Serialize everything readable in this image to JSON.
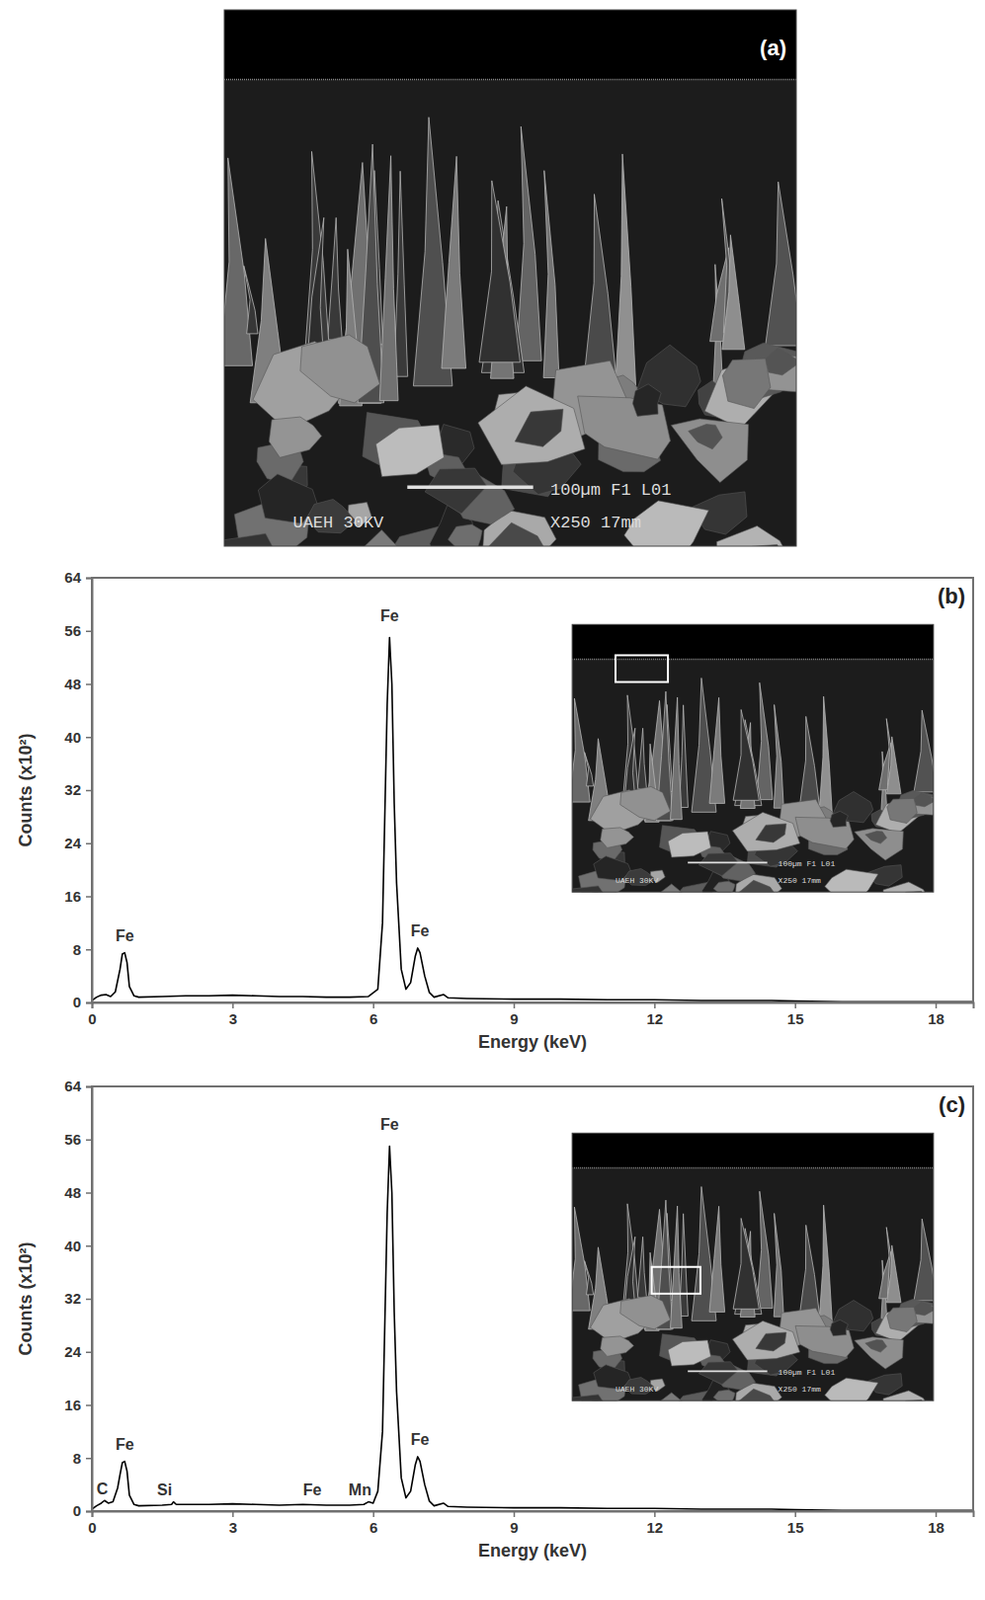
{
  "sem_image": {
    "label": "(a)",
    "texts": [
      "100µm F1 L01",
      "UAEH 30KV",
      "X250 17mm"
    ]
  },
  "chart_data": [
    {
      "type": "line",
      "title": "(b)",
      "x_label": "Energy (keV)",
      "y_label": "Counts (x10²)",
      "xlim": [
        0,
        18.8
      ],
      "xticks": [
        0,
        3,
        6,
        9,
        12,
        15,
        18
      ],
      "ylim": [
        0,
        64
      ],
      "yticks": [
        0,
        8,
        16,
        24,
        32,
        40,
        48,
        56,
        64
      ],
      "grid": false,
      "color": "#000000",
      "x": [
        0,
        0.1,
        0.2,
        0.3,
        0.4,
        0.5,
        0.6,
        0.65,
        0.7,
        0.75,
        0.8,
        0.9,
        1.0,
        1.5,
        2.0,
        2.5,
        3.0,
        3.5,
        4.0,
        4.5,
        5.0,
        5.5,
        5.9,
        6.1,
        6.2,
        6.3,
        6.35,
        6.4,
        6.45,
        6.5,
        6.6,
        6.7,
        6.8,
        6.9,
        6.95,
        7.0,
        7.1,
        7.2,
        7.3,
        7.5,
        7.6,
        8.0,
        9.0,
        10.0,
        11.0,
        12.0,
        13.0,
        14.0,
        14.5,
        15.0,
        16.0,
        17.0,
        18.0,
        18.8
      ],
      "values": [
        0.3,
        0.8,
        1.1,
        1.2,
        0.9,
        1.6,
        5.0,
        7.3,
        7.5,
        6.0,
        2.4,
        1.0,
        0.8,
        0.9,
        1.0,
        1.0,
        1.1,
        1.0,
        0.9,
        0.9,
        0.8,
        0.8,
        0.9,
        2.0,
        12,
        45,
        55,
        48,
        30,
        18,
        5,
        2,
        3,
        7,
        8.2,
        7.5,
        4,
        1.5,
        0.8,
        1.2,
        0.7,
        0.6,
        0.5,
        0.5,
        0.4,
        0.4,
        0.3,
        0.3,
        0.3,
        0.2,
        0.1,
        0.1,
        0.1,
        0.1
      ],
      "annotations": [
        {
          "text": "Fe",
          "x": 0.7,
          "y": 9.3
        },
        {
          "text": "Fe",
          "x": 6.35,
          "y": 57.5
        },
        {
          "text": "Fe",
          "x": 7.0,
          "y": 10
        }
      ]
    },
    {
      "type": "line",
      "title": "(c)",
      "x_label": "Energy (keV)",
      "y_label": "Counts (x10²)",
      "xlim": [
        0,
        18.8
      ],
      "xticks": [
        0,
        3,
        6,
        9,
        12,
        15,
        18
      ],
      "ylim": [
        0,
        64
      ],
      "yticks": [
        0,
        8,
        16,
        24,
        32,
        40,
        48,
        56,
        64
      ],
      "grid": false,
      "color": "#000000",
      "x": [
        0,
        0.1,
        0.2,
        0.27,
        0.35,
        0.45,
        0.55,
        0.6,
        0.65,
        0.7,
        0.75,
        0.8,
        0.9,
        1.0,
        1.5,
        1.7,
        1.74,
        1.8,
        2.0,
        2.5,
        3.0,
        3.5,
        4.0,
        4.5,
        5.0,
        5.5,
        5.8,
        5.9,
        6.0,
        6.1,
        6.2,
        6.3,
        6.35,
        6.4,
        6.45,
        6.5,
        6.6,
        6.7,
        6.8,
        6.9,
        6.95,
        7.0,
        7.1,
        7.2,
        7.3,
        7.5,
        7.6,
        8.0,
        9.0,
        10.0,
        11.0,
        12.0,
        13.0,
        14.0,
        14.5,
        15.0,
        16.0,
        17.0,
        18.0,
        18.8
      ],
      "values": [
        0.3,
        0.8,
        1.2,
        1.6,
        1.2,
        1.4,
        3.5,
        5.5,
        7.3,
        7.5,
        6.0,
        2.4,
        1.0,
        0.8,
        0.9,
        1.0,
        1.4,
        1.0,
        1.0,
        1.0,
        1.1,
        1.0,
        0.9,
        1.0,
        0.9,
        0.9,
        1.0,
        1.4,
        1.2,
        3.0,
        12,
        45,
        55,
        48,
        30,
        18,
        5,
        2,
        3,
        7,
        8.2,
        7.5,
        4,
        1.5,
        0.8,
        1.2,
        0.7,
        0.6,
        0.5,
        0.5,
        0.4,
        0.4,
        0.3,
        0.3,
        0.3,
        0.2,
        0.1,
        0.1,
        0.1,
        0.1
      ],
      "annotations": [
        {
          "text": "C",
          "x": 0.22,
          "y": 2.6
        },
        {
          "text": "Fe",
          "x": 0.7,
          "y": 9.3
        },
        {
          "text": "Si",
          "x": 1.55,
          "y": 2.4
        },
        {
          "text": "Fe",
          "x": 4.7,
          "y": 2.4
        },
        {
          "text": "Mn",
          "x": 5.72,
          "y": 2.4
        },
        {
          "text": "Fe",
          "x": 6.35,
          "y": 57.5
        },
        {
          "text": "Fe",
          "x": 7.0,
          "y": 10
        }
      ]
    }
  ]
}
